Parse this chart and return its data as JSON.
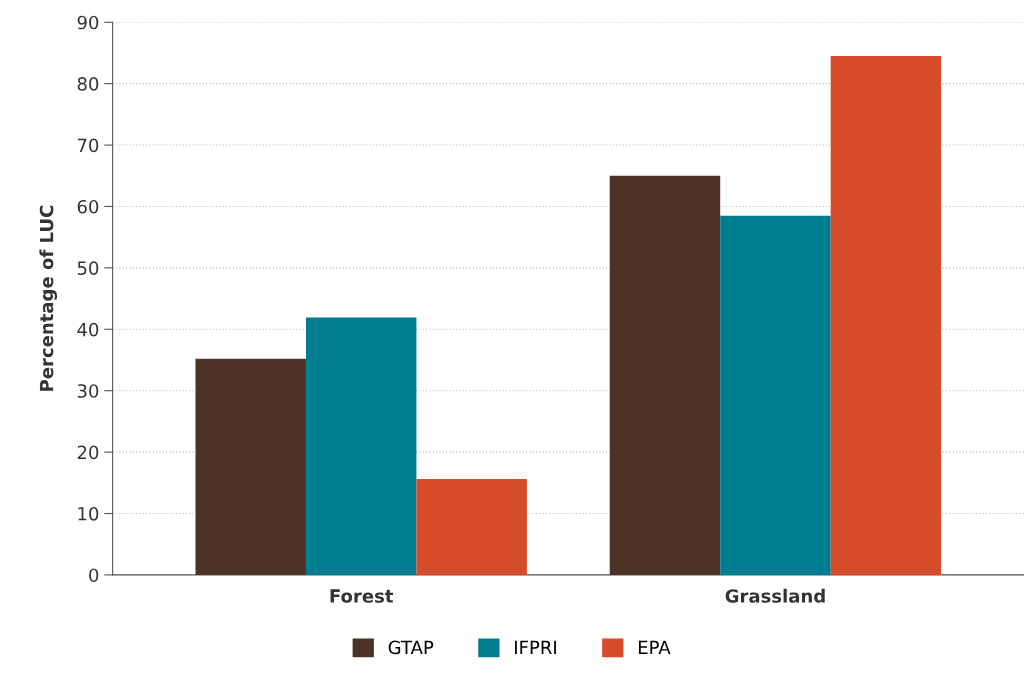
{
  "chart_data": {
    "type": "bar",
    "ylabel": "Percentage of LUC",
    "categories": [
      "Forest",
      "Grassland"
    ],
    "series": [
      {
        "name": "GTAP",
        "color": "#4d3228",
        "values": [
          35.2,
          65.0
        ]
      },
      {
        "name": "IFPRI",
        "color": "#007c91",
        "values": [
          41.9,
          58.5
        ]
      },
      {
        "name": "EPA",
        "color": "#d64b29",
        "values": [
          15.6,
          84.5
        ]
      }
    ],
    "ylim": [
      0,
      90
    ],
    "yticks": [
      0,
      10,
      20,
      30,
      40,
      50,
      60,
      70,
      80,
      90
    ],
    "grid": "y",
    "legend": "bottom"
  }
}
